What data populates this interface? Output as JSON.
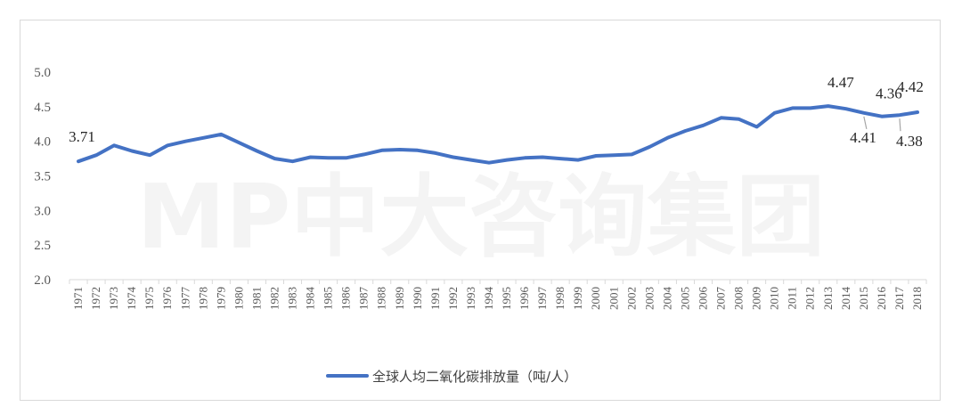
{
  "watermark": "MP中大咨询集团",
  "chart_data": {
    "type": "line",
    "title": "",
    "xlabel": "",
    "ylabel": "",
    "ylim": [
      2.0,
      5.0
    ],
    "yticks": [
      "2.0",
      "2.5",
      "3.0",
      "3.5",
      "4.0",
      "4.5",
      "5.0"
    ],
    "grid": false,
    "legend_position": "bottom",
    "series_color": "#4472C4",
    "x": [
      "1971",
      "1972",
      "1973",
      "1974",
      "1975",
      "1976",
      "1977",
      "1978",
      "1979",
      "1980",
      "1981",
      "1982",
      "1983",
      "1984",
      "1985",
      "1986",
      "1987",
      "1988",
      "1989",
      "1990",
      "1991",
      "1992",
      "1993",
      "1994",
      "1995",
      "1996",
      "1997",
      "1998",
      "1999",
      "2000",
      "2001",
      "2002",
      "2003",
      "2004",
      "2005",
      "2006",
      "2007",
      "2008",
      "2009",
      "2010",
      "2011",
      "2012",
      "2013",
      "2014",
      "2015",
      "2016",
      "2017",
      "2018"
    ],
    "series": [
      {
        "name": "全球人均二氧化碳排放量（吨/人）",
        "values": [
          3.71,
          3.8,
          3.94,
          3.86,
          3.8,
          3.94,
          4.0,
          4.05,
          4.1,
          3.98,
          3.86,
          3.75,
          3.71,
          3.77,
          3.76,
          3.76,
          3.81,
          3.87,
          3.88,
          3.87,
          3.83,
          3.77,
          3.73,
          3.69,
          3.73,
          3.76,
          3.77,
          3.75,
          3.73,
          3.79,
          3.8,
          3.81,
          3.92,
          4.05,
          4.15,
          4.23,
          4.34,
          4.32,
          4.21,
          4.41,
          4.48,
          4.48,
          4.51,
          4.47,
          4.41,
          4.36,
          4.38,
          4.42
        ]
      }
    ],
    "data_labels": [
      {
        "x": "1971",
        "text": "3.71"
      },
      {
        "x": "2014",
        "text": "4.47"
      },
      {
        "x": "2015",
        "text": "4.41"
      },
      {
        "x": "2016",
        "text": "4.36"
      },
      {
        "x": "2017",
        "text": "4.38"
      },
      {
        "x": "2018",
        "text": "4.42"
      }
    ]
  }
}
